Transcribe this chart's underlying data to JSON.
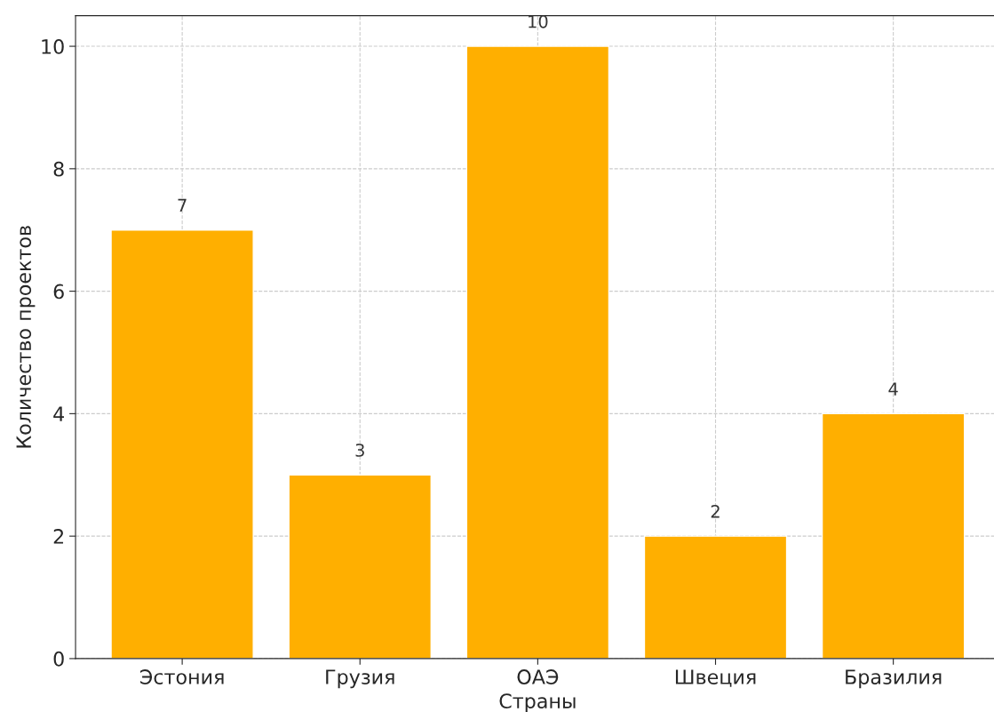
{
  "chart_data": {
    "type": "bar",
    "xlabel": "Страны",
    "ylabel": "Количество проектов",
    "categories": [
      "Эстония",
      "Грузия",
      "ОАЭ",
      "Швеция",
      "Бразилия"
    ],
    "values": [
      7,
      3,
      10,
      2,
      4
    ],
    "color": "#ffaf00",
    "ylim": [
      0,
      10.5
    ],
    "yticks": [
      0,
      2,
      4,
      6,
      8,
      10
    ],
    "grid": true,
    "line_style": "dashed",
    "data_labels": true
  }
}
